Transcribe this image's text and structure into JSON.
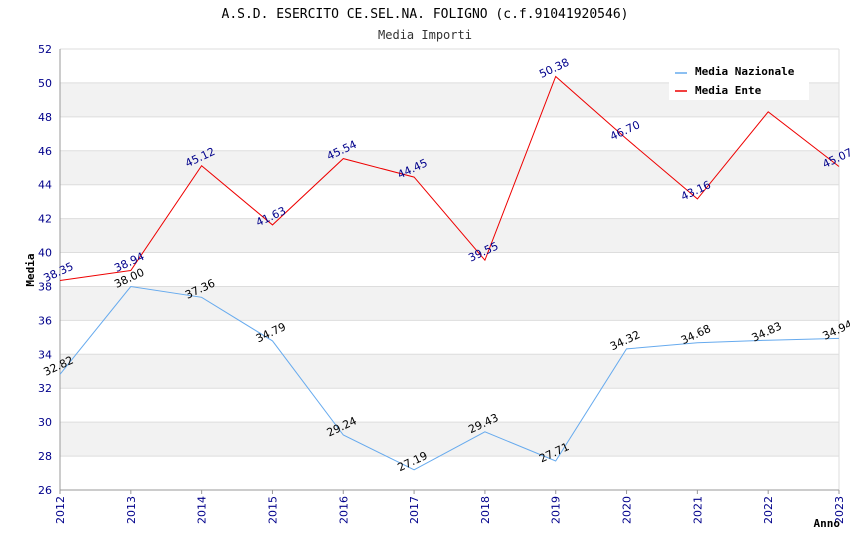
{
  "chart_data": {
    "type": "line",
    "title": "A.S.D. ESERCITO CE.SEL.NA. FOLIGNO (c.f.91041920546)",
    "subtitle": "Media Importi",
    "xlabel": "Anno",
    "ylabel": "Media",
    "ylim": [
      26,
      52
    ],
    "yticks": [
      26,
      28,
      30,
      32,
      34,
      36,
      38,
      40,
      42,
      44,
      46,
      48,
      50,
      52
    ],
    "categories": [
      "2012",
      "2013",
      "2014",
      "2015",
      "2016",
      "2017",
      "2018",
      "2019",
      "2020",
      "2021",
      "2022",
      "2023"
    ],
    "series": [
      {
        "name": "Media Nazionale",
        "color": "#66aaee",
        "label_color": "#000000",
        "values": [
          32.82,
          38.0,
          37.36,
          34.79,
          29.24,
          27.19,
          29.43,
          27.71,
          34.32,
          34.68,
          34.83,
          34.94
        ],
        "labels": [
          "32.82",
          "38.00",
          "37.36",
          "34.79",
          "29.24",
          "27.19",
          "29.43",
          "27.71",
          "34.32",
          "34.68",
          "34.83",
          "34.94"
        ]
      },
      {
        "name": "Media Ente",
        "color": "#ee0000",
        "label_color": "#00008b",
        "values": [
          38.35,
          38.94,
          45.12,
          41.63,
          45.54,
          44.45,
          39.55,
          50.38,
          46.7,
          43.16,
          48.3,
          45.07
        ],
        "labels": [
          "38.35",
          "38.94",
          "45.12",
          "41.63",
          "45.54",
          "44.45",
          "39.55",
          "50.38",
          "46.70",
          "43.16",
          "",
          "45.07"
        ]
      }
    ],
    "legend_position": "top-right",
    "grid": true,
    "band_color": "#f2f2f2"
  }
}
